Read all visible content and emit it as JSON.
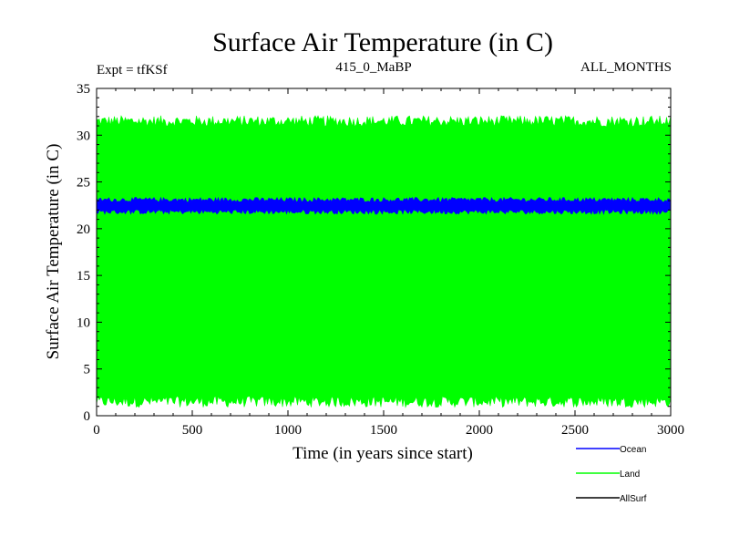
{
  "chart_data": {
    "type": "area",
    "title": "Surface Air Temperature (in C)",
    "subtitle_left": "Expt = tfKSf",
    "subtitle_center": "415_0_MaBP",
    "subtitle_right": "ALL_MONTHS",
    "xlabel": "Time (in years since start)",
    "ylabel": "Surface Air Temperature (in C)",
    "xlim": [
      0,
      3000
    ],
    "ylim": [
      0,
      35
    ],
    "xticks": [
      0,
      500,
      1000,
      1500,
      2000,
      2500,
      3000
    ],
    "yticks": [
      0,
      5,
      10,
      15,
      20,
      25,
      30,
      35
    ],
    "xtick_labels": [
      "0",
      "500",
      "1000",
      "1500",
      "2000",
      "2500",
      "3000"
    ],
    "ytick_labels": [
      "0",
      "5",
      "10",
      "15",
      "20",
      "25",
      "30",
      "35"
    ],
    "series": [
      {
        "name": "Land",
        "color": "#00ff00",
        "min": 1.5,
        "max": 31.5,
        "noise": 0.6
      },
      {
        "name": "Ocean",
        "color": "#0000ff",
        "min": 21.8,
        "max": 23.1,
        "noise": 0.25
      },
      {
        "name": "AllSurf",
        "color": "#000000"
      }
    ],
    "legend": [
      {
        "label": "Ocean",
        "color": "#0000ff"
      },
      {
        "label": "Land",
        "color": "#00ff00"
      },
      {
        "label": "AllSurf",
        "color": "#000000"
      }
    ],
    "legend_position": "bottom-right"
  }
}
